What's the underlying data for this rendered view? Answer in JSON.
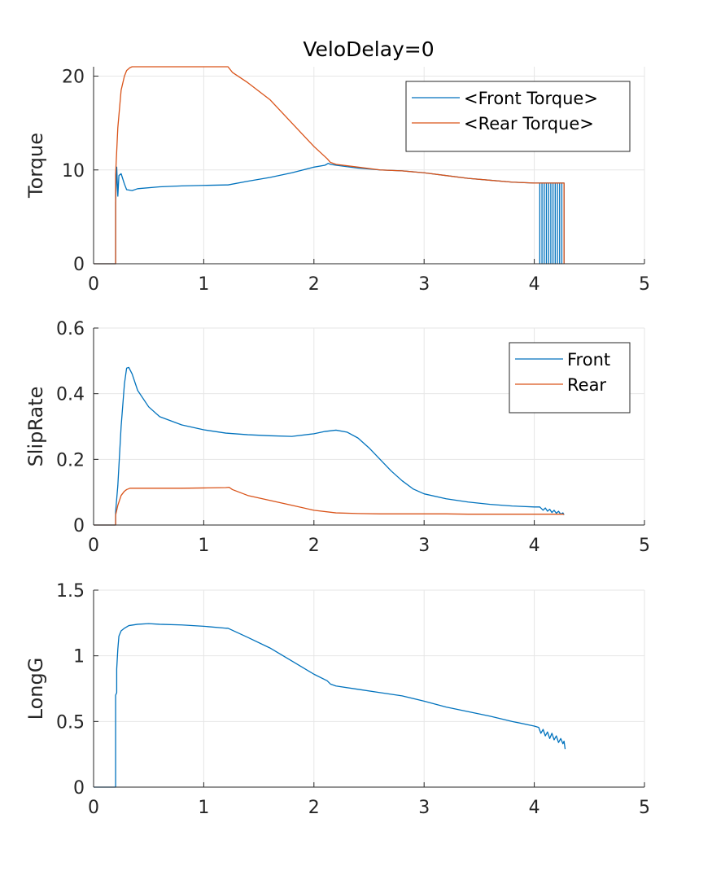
{
  "figure_title": "VeloDelay=0",
  "colors": {
    "front": "#0072BD",
    "rear": "#D95319",
    "grid": "#e6e6e6",
    "axis": "#262626"
  },
  "chart_data": [
    {
      "type": "line",
      "id": "torque",
      "ylabel": "Torque",
      "xlim": [
        0,
        5
      ],
      "ylim": [
        0,
        21
      ],
      "xticks": [
        0,
        1,
        2,
        3,
        4,
        5
      ],
      "yticks": [
        0,
        10,
        20
      ],
      "ytick_labels": [
        "0",
        "10",
        "20"
      ],
      "grid": true,
      "legend_position": "top-right",
      "series": [
        {
          "name": "<Front Torque>",
          "color": "#0072BD",
          "x": [
            0,
            0.2,
            0.2,
            0.21,
            0.22,
            0.23,
            0.25,
            0.28,
            0.3,
            0.35,
            0.4,
            0.6,
            0.8,
            1.0,
            1.2,
            1.22,
            1.4,
            1.6,
            1.8,
            2.0,
            2.1,
            2.13,
            2.15,
            2.2,
            2.4,
            2.6,
            2.8,
            3.0,
            3.2,
            3.4,
            3.6,
            3.8,
            4.0,
            4.05,
            4.05,
            4.05,
            4.07,
            4.07,
            4.07,
            4.09,
            4.09,
            4.09,
            4.11,
            4.11,
            4.11,
            4.13,
            4.13,
            4.13,
            4.15,
            4.15,
            4.15,
            4.17,
            4.17,
            4.17,
            4.19,
            4.19,
            4.19,
            4.21,
            4.21,
            4.21,
            4.23,
            4.23,
            4.23,
            4.25,
            4.25,
            4.25,
            4.27,
            4.27
          ],
          "y": [
            0,
            0,
            6.5,
            10.3,
            7.2,
            9.4,
            9.6,
            8.5,
            7.9,
            7.8,
            8.0,
            8.2,
            8.3,
            8.35,
            8.4,
            8.4,
            8.8,
            9.2,
            9.7,
            10.3,
            10.5,
            10.7,
            10.6,
            10.5,
            10.2,
            10.0,
            9.9,
            9.7,
            9.4,
            9.1,
            8.9,
            8.7,
            8.6,
            8.6,
            0,
            8.6,
            8.6,
            0,
            8.6,
            8.6,
            0,
            8.6,
            8.6,
            0,
            8.6,
            8.6,
            0,
            8.6,
            8.6,
            0,
            8.6,
            8.6,
            0,
            8.6,
            8.6,
            0,
            8.6,
            8.6,
            0,
            8.6,
            8.6,
            0,
            8.6,
            8.6,
            0,
            8.6,
            8.6,
            0
          ]
        },
        {
          "name": "<Rear Torque>",
          "color": "#D95319",
          "x": [
            0,
            0.2,
            0.2,
            0.22,
            0.25,
            0.28,
            0.3,
            0.33,
            0.35,
            0.6,
            0.8,
            1.0,
            1.2,
            1.22,
            1.26,
            1.4,
            1.6,
            1.8,
            2.0,
            2.12,
            2.15,
            2.2,
            2.4,
            2.6,
            2.8,
            3.0,
            3.2,
            3.4,
            3.6,
            3.8,
            4.0,
            4.27,
            4.27
          ],
          "y": [
            0,
            0,
            9.5,
            14.5,
            18.5,
            20.0,
            20.6,
            20.9,
            21.0,
            21.0,
            21.0,
            21.0,
            21.0,
            21.0,
            20.4,
            19.3,
            17.5,
            15.0,
            12.5,
            11.2,
            10.8,
            10.6,
            10.3,
            10.0,
            9.9,
            9.7,
            9.4,
            9.1,
            8.9,
            8.7,
            8.6,
            8.6,
            0
          ]
        }
      ]
    },
    {
      "type": "line",
      "id": "sliprate",
      "ylabel": "SlipRate",
      "xlim": [
        0,
        5
      ],
      "ylim": [
        0,
        0.6
      ],
      "xticks": [
        0,
        1,
        2,
        3,
        4,
        5
      ],
      "yticks": [
        0,
        0.2,
        0.4,
        0.6
      ],
      "ytick_labels": [
        "0",
        "0.2",
        "0.4",
        "0.6"
      ],
      "grid": true,
      "legend_position": "top-right",
      "series": [
        {
          "name": "Front",
          "color": "#0072BD",
          "x": [
            0,
            0.2,
            0.2,
            0.22,
            0.25,
            0.28,
            0.3,
            0.32,
            0.35,
            0.4,
            0.5,
            0.6,
            0.8,
            1.0,
            1.2,
            1.4,
            1.6,
            1.8,
            2.0,
            2.1,
            2.2,
            2.3,
            2.4,
            2.5,
            2.6,
            2.7,
            2.8,
            2.9,
            3.0,
            3.2,
            3.4,
            3.6,
            3.8,
            4.0,
            4.05,
            4.08,
            4.1,
            4.12,
            4.14,
            4.16,
            4.18,
            4.2,
            4.22,
            4.24,
            4.26,
            4.27
          ],
          "y": [
            0,
            0,
            0.04,
            0.12,
            0.3,
            0.43,
            0.478,
            0.48,
            0.46,
            0.41,
            0.36,
            0.33,
            0.305,
            0.29,
            0.28,
            0.275,
            0.272,
            0.27,
            0.278,
            0.285,
            0.289,
            0.283,
            0.265,
            0.235,
            0.2,
            0.165,
            0.135,
            0.11,
            0.095,
            0.08,
            0.07,
            0.063,
            0.058,
            0.055,
            0.055,
            0.045,
            0.052,
            0.042,
            0.048,
            0.038,
            0.045,
            0.036,
            0.042,
            0.033,
            0.037,
            0.031
          ]
        },
        {
          "name": "Rear",
          "color": "#D95319",
          "x": [
            0,
            0.2,
            0.2,
            0.22,
            0.25,
            0.28,
            0.3,
            0.33,
            0.35,
            0.6,
            0.8,
            1.0,
            1.2,
            1.23,
            1.26,
            1.4,
            1.6,
            1.8,
            2.0,
            2.2,
            2.4,
            2.6,
            2.8,
            3.0,
            3.2,
            3.4,
            3.6,
            3.8,
            4.0,
            4.27
          ],
          "y": [
            0,
            0,
            0.03,
            0.06,
            0.09,
            0.103,
            0.108,
            0.112,
            0.112,
            0.112,
            0.112,
            0.113,
            0.114,
            0.115,
            0.108,
            0.09,
            0.075,
            0.06,
            0.045,
            0.037,
            0.035,
            0.034,
            0.034,
            0.034,
            0.034,
            0.033,
            0.033,
            0.033,
            0.033,
            0.033
          ]
        }
      ]
    },
    {
      "type": "line",
      "id": "longg",
      "ylabel": "LongG",
      "xlim": [
        0,
        5
      ],
      "ylim": [
        0,
        1.5
      ],
      "xticks": [
        0,
        1,
        2,
        3,
        4,
        5
      ],
      "yticks": [
        0,
        0.5,
        1,
        1.5
      ],
      "ytick_labels": [
        "0",
        "0.5",
        "1",
        "1.5"
      ],
      "grid": true,
      "legend_position": "none",
      "series": [
        {
          "color": "#0072BD",
          "x": [
            0,
            0.2,
            0.2,
            0.21,
            0.21,
            0.22,
            0.23,
            0.25,
            0.28,
            0.32,
            0.4,
            0.5,
            0.6,
            0.8,
            1.0,
            1.2,
            1.22,
            1.4,
            1.6,
            1.8,
            2.0,
            2.12,
            2.15,
            2.2,
            2.4,
            2.6,
            2.8,
            3.0,
            3.2,
            3.4,
            3.6,
            3.8,
            4.0,
            4.04,
            4.06,
            4.08,
            4.1,
            4.12,
            4.14,
            4.16,
            4.18,
            4.2,
            4.22,
            4.24,
            4.26,
            4.27,
            4.28
          ],
          "y": [
            0,
            0,
            0.7,
            0.72,
            0.9,
            1.05,
            1.15,
            1.19,
            1.21,
            1.23,
            1.24,
            1.245,
            1.24,
            1.235,
            1.225,
            1.21,
            1.21,
            1.14,
            1.06,
            0.96,
            0.86,
            0.81,
            0.785,
            0.77,
            0.745,
            0.72,
            0.695,
            0.655,
            0.61,
            0.575,
            0.54,
            0.5,
            0.465,
            0.455,
            0.41,
            0.44,
            0.39,
            0.42,
            0.37,
            0.41,
            0.36,
            0.39,
            0.34,
            0.37,
            0.33,
            0.35,
            0.29
          ]
        }
      ]
    }
  ]
}
